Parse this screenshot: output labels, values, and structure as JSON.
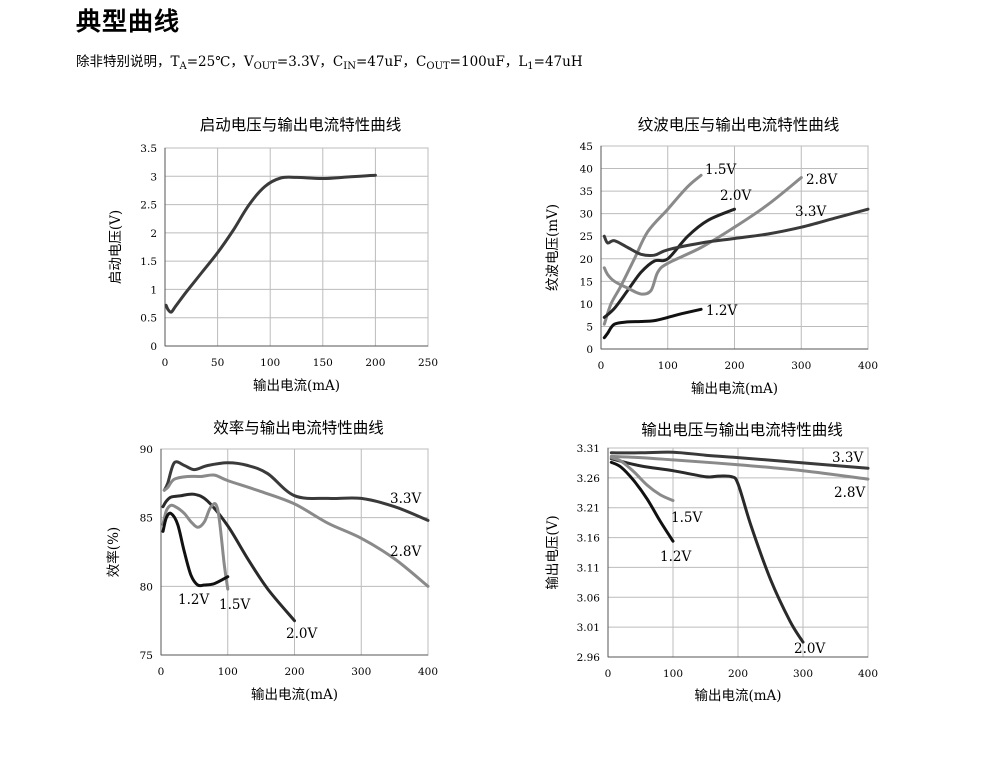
{
  "page": {
    "heading": "典型曲线",
    "conditions": {
      "prefix": "除非特别说明，",
      "ta_sym": "T",
      "ta_sub": "A",
      "ta_val": "=25℃，",
      "vout_sym": "V",
      "vout_sub": "OUT",
      "vout_val": "=3.3V，",
      "cin_sym": "C",
      "cin_sub": "IN",
      "cin_val": "=47uF，",
      "cout_sym": "C",
      "cout_sub": "OUT",
      "cout_val": "=100uF，",
      "l_sym": "L",
      "l_sub": "1",
      "l_val": "=47uH"
    }
  },
  "chart_data": [
    {
      "id": "startup",
      "type": "line",
      "title": "启动电压与输出电流特性曲线",
      "xlabel": "输出电流(mA)",
      "ylabel": "启动电压(V)",
      "xlim": [
        0,
        250
      ],
      "ylim": [
        0,
        3.5
      ],
      "xticks": [
        0,
        50,
        100,
        150,
        200,
        250
      ],
      "yticks": [
        0,
        0.5,
        1,
        1.5,
        2,
        2.5,
        3,
        3.5
      ],
      "ytick_labels": [
        "0",
        "0.5",
        "1",
        "1.5",
        "2",
        "2.5",
        "3",
        "3.5"
      ],
      "grid": true,
      "series": [
        {
          "label": "",
          "color": "#3a3a3a",
          "x": [
            1,
            3,
            6,
            10,
            20,
            35,
            50,
            65,
            80,
            95,
            110,
            125,
            150,
            175,
            200
          ],
          "y": [
            0.72,
            0.64,
            0.6,
            0.7,
            0.95,
            1.3,
            1.65,
            2.05,
            2.5,
            2.82,
            2.97,
            2.98,
            2.96,
            2.99,
            3.02
          ]
        }
      ]
    },
    {
      "id": "ripple",
      "type": "line",
      "title": "纹波电压与输出电流特性曲线",
      "xlabel": "输出电流(mA)",
      "ylabel": "纹波电压(mV)",
      "xlim": [
        0,
        400
      ],
      "ylim": [
        0,
        45
      ],
      "xticks": [
        0,
        100,
        200,
        300,
        400
      ],
      "yticks": [
        0,
        5,
        10,
        15,
        20,
        25,
        30,
        35,
        40,
        45
      ],
      "ytick_labels": [
        "0",
        "5",
        "10",
        "15",
        "20",
        "25",
        "30",
        "35",
        "40",
        "45"
      ],
      "grid": true,
      "series": [
        {
          "label": "1.5V",
          "color": "#8a8a8a",
          "x": [
            5,
            15,
            30,
            50,
            70,
            100,
            130,
            150
          ],
          "y": [
            5.5,
            10,
            14,
            20,
            26,
            31,
            36,
            38.5
          ]
        },
        {
          "label": "2.0V",
          "color": "#222222",
          "x": [
            5,
            20,
            40,
            60,
            80,
            100,
            130,
            160,
            200
          ],
          "y": [
            7,
            9,
            13,
            17,
            19.5,
            20,
            25,
            28.5,
            31
          ]
        },
        {
          "label": "2.8V",
          "color": "#8a8a8a",
          "x": [
            5,
            10,
            20,
            40,
            60,
            75,
            85,
            100,
            150,
            200,
            250,
            300
          ],
          "y": [
            18,
            16.5,
            15,
            13.5,
            12.2,
            13,
            17,
            19,
            22.5,
            27,
            32,
            38
          ]
        },
        {
          "label": "3.3V",
          "color": "#3a3a3a",
          "x": [
            5,
            10,
            20,
            40,
            60,
            80,
            100,
            150,
            200,
            250,
            300,
            350,
            400
          ],
          "y": [
            25,
            23.5,
            24,
            22.5,
            21,
            20.8,
            22,
            23.5,
            24.5,
            25.5,
            27,
            29,
            31
          ]
        },
        {
          "label": "1.2V",
          "color": "#111111",
          "x": [
            5,
            10,
            20,
            40,
            60,
            80,
            100,
            120,
            150
          ],
          "y": [
            2.5,
            3.5,
            5.5,
            6,
            6.1,
            6.3,
            7,
            7.8,
            8.8
          ]
        }
      ]
    },
    {
      "id": "efficiency",
      "type": "line",
      "title": "效率与输出电流特性曲线",
      "xlabel": "输出电流(mA)",
      "ylabel": "效率(%)",
      "xlim": [
        0,
        400
      ],
      "ylim": [
        75,
        90
      ],
      "xticks": [
        0,
        100,
        200,
        300,
        400
      ],
      "yticks": [
        75,
        80,
        85,
        90
      ],
      "ytick_labels": [
        "75",
        "80",
        "85",
        "90"
      ],
      "grid": true,
      "series": [
        {
          "label": "3.3V",
          "color": "#3a3a3a",
          "x": [
            5,
            10,
            20,
            35,
            50,
            70,
            100,
            130,
            160,
            200,
            250,
            300,
            350,
            400
          ],
          "y": [
            87,
            87.5,
            89,
            88.8,
            88.5,
            88.8,
            89,
            88.8,
            88.2,
            86.6,
            86.4,
            86.4,
            85.8,
            84.8
          ]
        },
        {
          "label": "2.8V",
          "color": "#8a8a8a",
          "x": [
            5,
            10,
            20,
            40,
            60,
            80,
            100,
            150,
            200,
            250,
            300,
            350,
            400
          ],
          "y": [
            87,
            87.2,
            87.8,
            88,
            88,
            88.1,
            87.7,
            86.9,
            86,
            84.6,
            83.5,
            82,
            80
          ]
        },
        {
          "label": "2.0V",
          "color": "#2a2a2a",
          "x": [
            3,
            8,
            15,
            30,
            50,
            70,
            100,
            130,
            160,
            200
          ],
          "y": [
            85.8,
            86.2,
            86.5,
            86.6,
            86.7,
            86.2,
            84.4,
            82,
            79.8,
            77.5
          ]
        },
        {
          "label": "1.5V",
          "color": "#8a8a8a",
          "x": [
            3,
            8,
            15,
            25,
            35,
            45,
            55,
            65,
            75,
            85,
            95,
            100
          ],
          "y": [
            84.5,
            85.5,
            85.9,
            85.7,
            85.3,
            84.7,
            84.3,
            84.7,
            85.8,
            85.6,
            81.5,
            79.8
          ]
        },
        {
          "label": "1.2V",
          "color": "#111111",
          "x": [
            3,
            8,
            15,
            25,
            35,
            45,
            55,
            65,
            80,
            100
          ],
          "y": [
            84,
            85,
            85.3,
            84.5,
            82.5,
            80.8,
            80.1,
            80.1,
            80.2,
            80.7
          ]
        }
      ]
    },
    {
      "id": "output_voltage",
      "type": "line",
      "title": "输出电压与输出电流特性曲线",
      "xlabel": "输出电流(mA)",
      "ylabel": "输出电压(V)",
      "xlim": [
        0,
        400
      ],
      "ylim": [
        2.96,
        3.31
      ],
      "xticks": [
        0,
        100,
        200,
        300,
        400
      ],
      "yticks": [
        2.96,
        3.01,
        3.06,
        3.11,
        3.16,
        3.21,
        3.26,
        3.31
      ],
      "ytick_labels": [
        "2.96",
        "3.01",
        "3.06",
        "3.11",
        "3.16",
        "3.21",
        "3.26",
        "3.31"
      ],
      "grid": true,
      "series": [
        {
          "label": "3.3V",
          "color": "#3a3a3a",
          "x": [
            5,
            50,
            100,
            150,
            200,
            300,
            400
          ],
          "y": [
            3.302,
            3.302,
            3.303,
            3.298,
            3.294,
            3.285,
            3.276
          ]
        },
        {
          "label": "2.8V",
          "color": "#8a8a8a",
          "x": [
            5,
            50,
            100,
            200,
            300,
            400
          ],
          "y": [
            3.296,
            3.294,
            3.29,
            3.282,
            3.272,
            3.258
          ]
        },
        {
          "label": "2.0V",
          "color": "#2a2a2a",
          "x": [
            5,
            50,
            100,
            150,
            170,
            190,
            200,
            220,
            250,
            280,
            300
          ],
          "y": [
            3.292,
            3.28,
            3.272,
            3.262,
            3.263,
            3.262,
            3.25,
            3.18,
            3.09,
            3.02,
            2.985
          ]
        },
        {
          "label": "1.5V",
          "color": "#8a8a8a",
          "x": [
            5,
            20,
            40,
            60,
            80,
            100
          ],
          "y": [
            3.294,
            3.288,
            3.27,
            3.248,
            3.232,
            3.222
          ]
        },
        {
          "label": "1.2V",
          "color": "#111111",
          "x": [
            5,
            20,
            40,
            60,
            80,
            100
          ],
          "y": [
            3.286,
            3.278,
            3.255,
            3.225,
            3.188,
            3.154
          ]
        }
      ]
    }
  ]
}
